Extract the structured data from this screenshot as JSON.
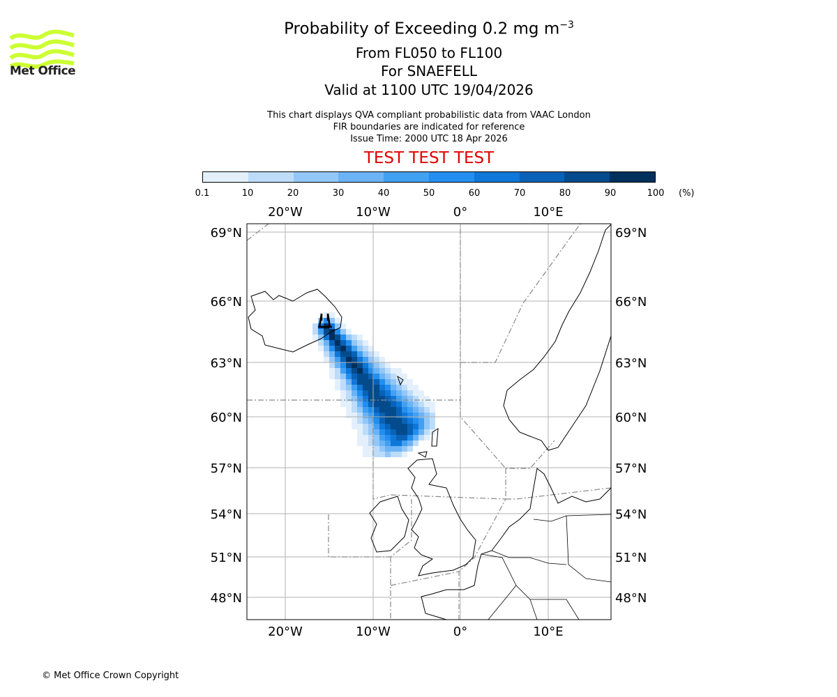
{
  "logo": {
    "text": "Met Office",
    "colors": [
      "#ccff33"
    ]
  },
  "title": {
    "main": "Probability of Exceeding 0.2 mg m",
    "main_exp": "−3",
    "levels": "From FL050 to FL100",
    "volcano": "For SNAEFELL",
    "valid": "Valid at 1100 UTC 19/04/2026"
  },
  "subtitle": [
    "This chart displays QVA compliant probabilistic data from VAAC London",
    "FIR boundaries are indicated for reference",
    "Issue Time: 2000 UTC 18 Apr 2026"
  ],
  "test_banner": "TEST TEST TEST",
  "colorbar": {
    "ticks": [
      "0.1",
      "10",
      "20",
      "30",
      "40",
      "50",
      "60",
      "70",
      "80",
      "90",
      "100"
    ],
    "unit": "(%)",
    "colors": [
      "#e3f0fc",
      "#bddcfa",
      "#93c7f8",
      "#6bb3f5",
      "#42a0f2",
      "#228ef0",
      "#0f77d8",
      "#0862b7",
      "#034b8c",
      "#01305d"
    ]
  },
  "map": {
    "lon_labels": [
      "20°W",
      "10°W",
      "0°",
      "10°E"
    ],
    "lat_labels": [
      "69°N",
      "66°N",
      "63°N",
      "60°N",
      "57°N",
      "54°N",
      "51°N",
      "48°N"
    ],
    "volcano_icon": "volcano-icon"
  },
  "chart_data": {
    "type": "heatmap",
    "title": "Probability of Exceeding 0.2 mg m-3, FL050 to FL100, SNAEFELL, valid 1100 UTC 19/04/2026",
    "variable": "probability (%)",
    "levels": [
      0.1,
      10,
      20,
      30,
      40,
      50,
      60,
      70,
      80,
      90,
      100
    ],
    "lon_range": [
      -24.4,
      17
    ],
    "lat_range": [
      46.5,
      69.5
    ],
    "plume": {
      "source_lon": -15.5,
      "source_lat": 64.8,
      "axis_end_lon": -6.5,
      "axis_end_lat": 59.0,
      "peak_percent": 95
    }
  },
  "copyright": "© Met Office Crown Copyright"
}
